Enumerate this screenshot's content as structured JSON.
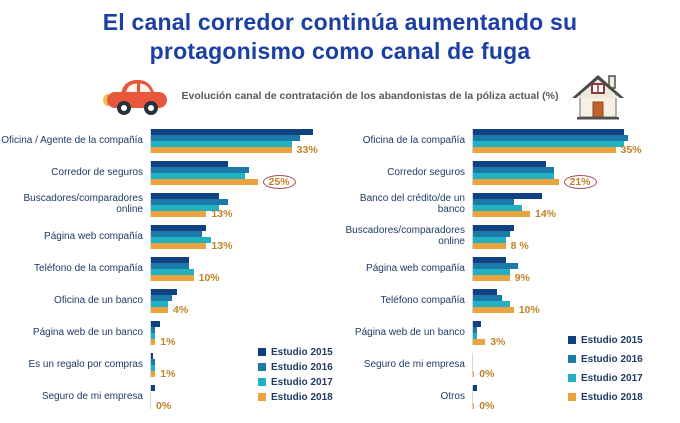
{
  "title": "El canal corredor continúa aumentando su protagonismo como canal de fuga",
  "subtitle": "Evolución canal de contratación de los abandonistas de la póliza actual (%)",
  "icons": {
    "left": "car-icon",
    "right": "house-icon"
  },
  "colors": {
    "title": "#1b3fa5",
    "subtitle": "#595959",
    "category_label": "#1f3b64",
    "value_label": "#c28227",
    "highlight_circle": "#a84f5f",
    "axis_line": "#d6d6d6",
    "series": [
      "#10407f",
      "#1b7aa8",
      "#22b1c3",
      "#eda33d"
    ]
  },
  "legend": [
    "Estudio 2015",
    "Estudio 2016",
    "Estudio 2017",
    "Estudio 2018"
  ],
  "chart_data": [
    {
      "type": "bar",
      "orientation": "horizontal",
      "name": "auto",
      "title": "",
      "xlim": [
        0,
        42
      ],
      "grid": false,
      "legend_position": "bottom-right",
      "categories": [
        "Oficina / Agente de la compañía",
        "Corredor de seguros",
        "Buscadores/comparadores online",
        "Página web compañía",
        "Teléfono de la compañía",
        "Oficina de un banco",
        "Página web de un banco",
        "Es un regalo por compras",
        "Seguro de mi empresa"
      ],
      "series": [
        {
          "name": "Estudio 2015",
          "values": [
            38,
            18,
            16,
            13,
            9,
            6,
            2,
            0.5,
            1
          ]
        },
        {
          "name": "Estudio 2016",
          "values": [
            35,
            23,
            18,
            12,
            9,
            5,
            1,
            1,
            0
          ]
        },
        {
          "name": "Estudio 2017",
          "values": [
            33,
            22,
            16,
            14,
            10,
            4,
            1,
            1,
            0
          ]
        },
        {
          "name": "Estudio 2018",
          "values": [
            33,
            25,
            13,
            13,
            10,
            4,
            1,
            1,
            0
          ]
        }
      ],
      "value_labels": [
        "33%",
        "25%",
        "13%",
        "13%",
        "10%",
        "4%",
        "1%",
        "1%",
        "0%"
      ],
      "circled_index": 1
    },
    {
      "type": "bar",
      "orientation": "horizontal",
      "name": "hogar",
      "title": "",
      "xlim": [
        0,
        42
      ],
      "grid": false,
      "legend_position": "bottom-right",
      "categories": [
        "Oficina de la compañía",
        "Corredor seguros",
        "Banco del crédito/de un banco",
        "Buscadores/comparadores online",
        "Página web compañía",
        "Teléfono compañía",
        "Página web de un banco",
        "Seguro de mi empresa",
        "Otros"
      ],
      "series": [
        {
          "name": "Estudio 2015",
          "values": [
            37,
            18,
            17,
            10,
            8,
            6,
            2,
            0,
            1
          ]
        },
        {
          "name": "Estudio 2016",
          "values": [
            38,
            20,
            10,
            9,
            11,
            7,
            1,
            0,
            0
          ]
        },
        {
          "name": "Estudio 2017",
          "values": [
            37,
            20,
            12,
            8,
            9,
            9,
            1,
            0,
            0
          ]
        },
        {
          "name": "Estudio 2018",
          "values": [
            35,
            21,
            14,
            8,
            9,
            10,
            3,
            0.3,
            0.3
          ]
        }
      ],
      "value_labels": [
        "35%",
        "21%",
        "14%",
        "8 %",
        "9%",
        "10%",
        "3%",
        "0%",
        "0%"
      ],
      "circled_index": 1
    }
  ]
}
